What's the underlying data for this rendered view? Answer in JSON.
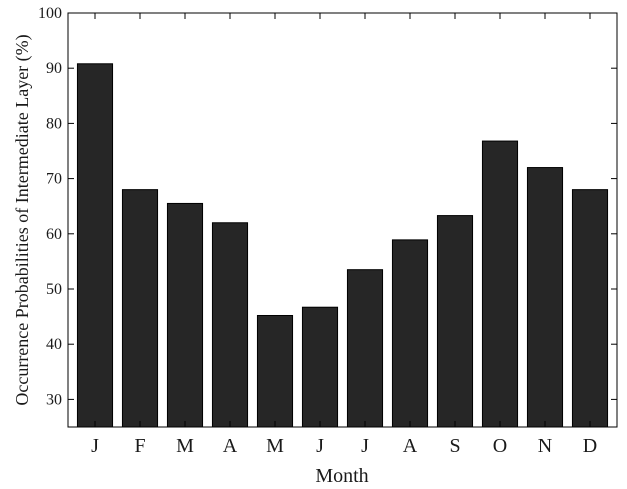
{
  "chart_data": {
    "type": "bar",
    "title": "",
    "xlabel": "Month",
    "ylabel": "Occurrence Probabilities of Intermediate Layer (%)",
    "categories": [
      "J",
      "F",
      "M",
      "A",
      "M",
      "J",
      "J",
      "A",
      "S",
      "O",
      "N",
      "D"
    ],
    "values": [
      90.8,
      68.0,
      65.5,
      62.0,
      45.2,
      46.7,
      53.5,
      58.9,
      63.3,
      76.8,
      72.0,
      68.0
    ],
    "ylim": [
      25,
      100
    ],
    "yticks": [
      30,
      40,
      50,
      60,
      70,
      80,
      90,
      100
    ],
    "grid": false,
    "bar_color": "#262626",
    "edge_color": "#000000"
  }
}
